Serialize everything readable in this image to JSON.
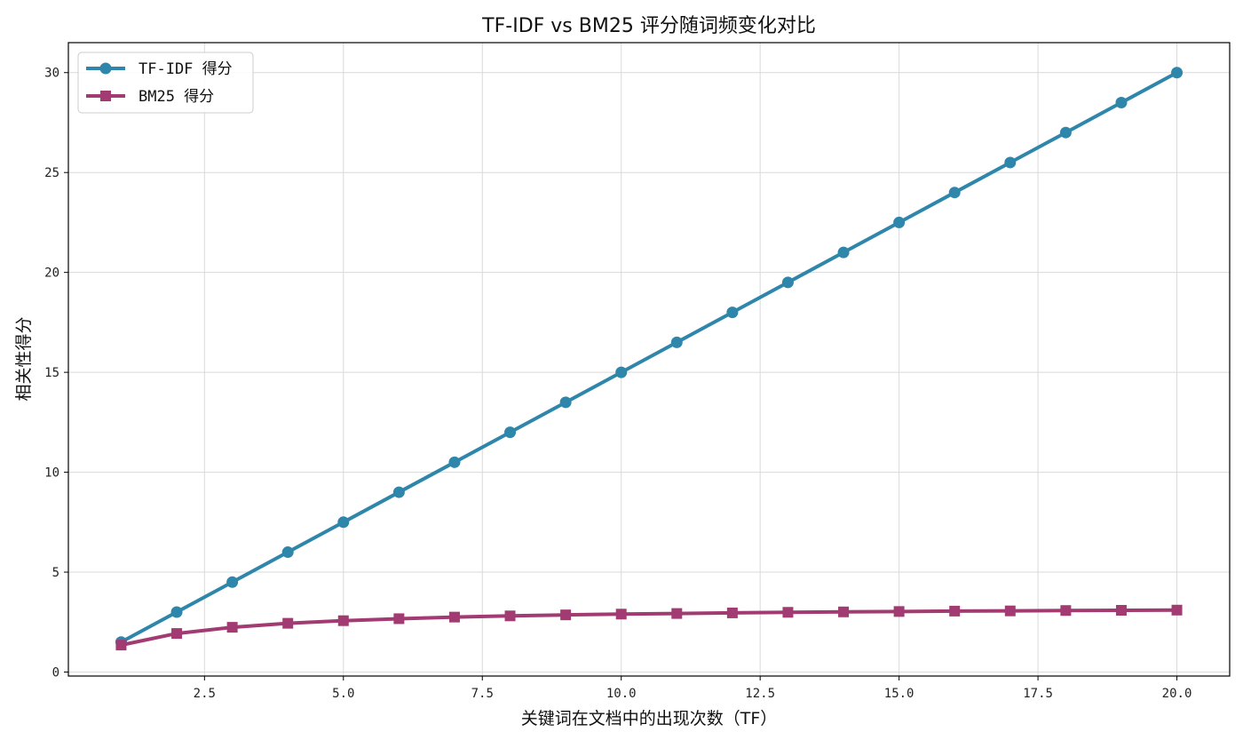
{
  "chart_data": {
    "type": "line",
    "title": "TF-IDF vs BM25 评分随词频变化对比",
    "xlabel": "关键词在文档中的出现次数（TF）",
    "ylabel": "相关性得分",
    "xlim": [
      0.05,
      20.95
    ],
    "ylim": [
      -0.2,
      31.5
    ],
    "xticks": [
      2.5,
      5.0,
      7.5,
      10.0,
      12.5,
      15.0,
      17.5,
      20.0
    ],
    "xtick_labels": [
      "2.5",
      "5.0",
      "7.5",
      "10.0",
      "12.5",
      "15.0",
      "17.5",
      "20.0"
    ],
    "yticks": [
      0,
      5,
      10,
      15,
      20,
      25,
      30
    ],
    "ytick_labels": [
      "0",
      "5",
      "10",
      "15",
      "20",
      "25",
      "30"
    ],
    "grid": true,
    "legend_position": "top-left",
    "x": [
      1,
      2,
      3,
      4,
      5,
      6,
      7,
      8,
      9,
      10,
      11,
      12,
      13,
      14,
      15,
      16,
      17,
      18,
      19,
      20
    ],
    "series": [
      {
        "name": "TF-IDF 得分",
        "color": "#2e86ab",
        "marker": "circle",
        "values": [
          1.5,
          3.0,
          4.5,
          6.0,
          7.5,
          9.0,
          10.5,
          12.0,
          13.5,
          15.0,
          16.5,
          18.0,
          19.5,
          21.0,
          22.5,
          24.0,
          25.5,
          27.0,
          28.5,
          30.0
        ]
      },
      {
        "name": "BM25 得分",
        "color": "#a23b72",
        "marker": "square",
        "values": [
          1.35,
          1.93,
          2.24,
          2.44,
          2.57,
          2.67,
          2.75,
          2.81,
          2.86,
          2.9,
          2.93,
          2.96,
          2.99,
          3.01,
          3.03,
          3.05,
          3.06,
          3.08,
          3.09,
          3.1
        ]
      }
    ]
  }
}
